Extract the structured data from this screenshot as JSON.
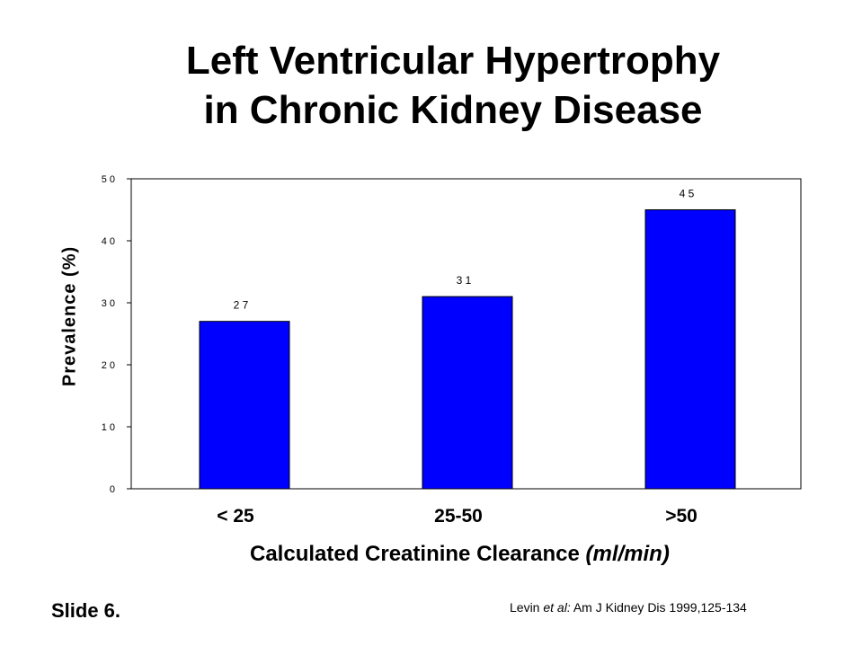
{
  "slide": {
    "title_line1": "Left Ventricular Hypertrophy",
    "title_line2": "in Chronic Kidney Disease",
    "slide_number": "Slide 6.",
    "citation": {
      "author": "Levin",
      "etal": "et al:",
      "source": "Am J Kidney Dis 1999,125-134"
    }
  },
  "chart_data": {
    "type": "bar",
    "title": "Left Ventricular Hypertrophy in Chronic Kidney Disease",
    "categories": [
      "< 25",
      "25-50",
      ">50"
    ],
    "values": [
      27,
      31,
      45
    ],
    "data_labels": [
      "2 7",
      "3 1",
      "4 5"
    ],
    "ylabel": "Prevalence (%)",
    "xlabel": "Calculated Creatinine Clearance",
    "xlabel_unit": "(ml/min)",
    "ylim": [
      0,
      50
    ],
    "yticks": [
      0,
      10,
      20,
      30,
      40,
      50
    ],
    "ytick_labels": [
      "0",
      "1 0",
      "2 0",
      "3 0",
      "4 0",
      "5 0"
    ],
    "bar_color": "#0000FF",
    "grid": false,
    "legend": "none"
  }
}
